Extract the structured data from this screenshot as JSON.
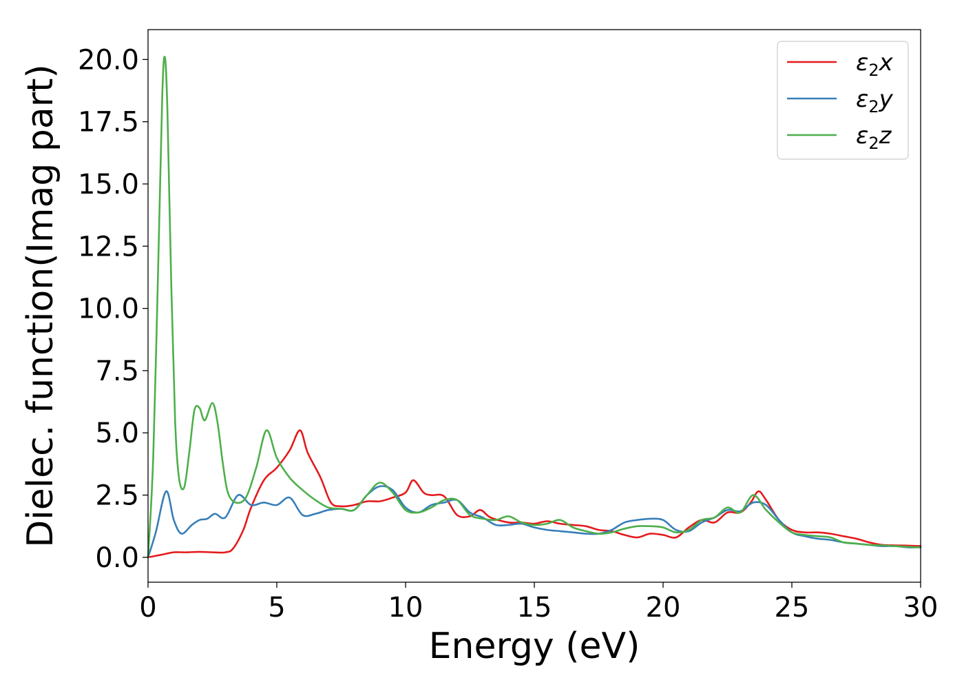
{
  "chart_data": {
    "type": "line",
    "title": "",
    "xlabel": "Energy (eV)",
    "ylabel": "Dielec. function(Imag part)",
    "xlim": [
      0,
      30
    ],
    "ylim": [
      -1.0,
      21.2
    ],
    "xticks": [
      0,
      5,
      10,
      15,
      20,
      25,
      30
    ],
    "xtick_labels": [
      "0",
      "5",
      "10",
      "15",
      "20",
      "25",
      "30"
    ],
    "yticks": [
      0.0,
      2.5,
      5.0,
      7.5,
      10.0,
      12.5,
      15.0,
      17.5,
      20.0
    ],
    "ytick_labels": [
      "0.0",
      "2.5",
      "5.0",
      "7.5",
      "10.0",
      "12.5",
      "15.0",
      "17.5",
      "20.0"
    ],
    "grid": false,
    "legend_position": "top-right",
    "series": [
      {
        "name": "ε₂x",
        "legend_main": "ε",
        "legend_sub": "2",
        "legend_var": "x",
        "color": "#e41a1c",
        "x": [
          0,
          0.5,
          1.0,
          1.5,
          2.0,
          2.5,
          3.0,
          3.3,
          3.7,
          4.0,
          4.5,
          5.0,
          5.5,
          5.9,
          6.2,
          6.7,
          7.1,
          7.5,
          8.0,
          8.5,
          9.0,
          9.5,
          10.0,
          10.3,
          10.7,
          11.0,
          11.5,
          12.0,
          12.5,
          12.9,
          13.3,
          14.0,
          14.5,
          15.0,
          15.5,
          16.0,
          16.5,
          17.0,
          17.5,
          18.0,
          18.5,
          19.0,
          19.5,
          20.0,
          20.5,
          21.0,
          21.5,
          22.0,
          22.5,
          23.0,
          23.4,
          23.7,
          24.0,
          24.5,
          25.0,
          25.5,
          26.0,
          26.5,
          27.0,
          27.5,
          28.0,
          28.5,
          29.0,
          29.5,
          30.0
        ],
        "y": [
          0.0,
          0.1,
          0.2,
          0.2,
          0.22,
          0.2,
          0.2,
          0.35,
          1.1,
          2.0,
          3.1,
          3.6,
          4.3,
          5.1,
          4.2,
          3.2,
          2.2,
          2.05,
          2.1,
          2.25,
          2.25,
          2.4,
          2.6,
          3.1,
          2.6,
          2.5,
          2.45,
          1.7,
          1.65,
          1.9,
          1.6,
          1.4,
          1.4,
          1.35,
          1.45,
          1.35,
          1.3,
          1.25,
          1.1,
          1.05,
          0.9,
          0.8,
          0.95,
          0.9,
          0.8,
          1.2,
          1.5,
          1.4,
          1.8,
          1.8,
          2.2,
          2.65,
          2.3,
          1.5,
          1.1,
          1.0,
          1.0,
          0.95,
          0.85,
          0.75,
          0.6,
          0.5,
          0.48,
          0.47,
          0.45
        ]
      },
      {
        "name": "ε₂y",
        "legend_main": "ε",
        "legend_sub": "2",
        "legend_var": "y",
        "color": "#377eb8",
        "x": [
          0,
          0.3,
          0.7,
          1.0,
          1.3,
          1.7,
          2.0,
          2.3,
          2.6,
          3.0,
          3.5,
          4.0,
          4.5,
          5.0,
          5.5,
          6.0,
          6.5,
          7.0,
          7.5,
          8.0,
          8.5,
          9.0,
          9.5,
          10.0,
          10.5,
          11.0,
          11.5,
          12.0,
          12.5,
          13.0,
          13.5,
          14.0,
          14.5,
          15.0,
          15.5,
          16.0,
          16.5,
          17.0,
          17.5,
          18.0,
          18.5,
          19.0,
          19.5,
          20.0,
          20.5,
          21.0,
          21.5,
          22.0,
          22.5,
          23.0,
          23.5,
          24.0,
          24.5,
          25.0,
          25.5,
          26.0,
          26.5,
          27.0,
          27.5,
          28.0,
          28.5,
          29.0,
          29.5,
          30.0
        ],
        "y": [
          0.0,
          1.0,
          2.65,
          1.5,
          0.95,
          1.3,
          1.5,
          1.55,
          1.75,
          1.6,
          2.5,
          2.1,
          2.2,
          2.1,
          2.4,
          1.7,
          1.75,
          1.9,
          1.95,
          1.9,
          2.5,
          2.85,
          2.7,
          2.0,
          1.8,
          2.1,
          2.2,
          2.3,
          1.8,
          1.6,
          1.3,
          1.3,
          1.35,
          1.2,
          1.1,
          1.05,
          1.0,
          0.95,
          0.95,
          1.1,
          1.4,
          1.5,
          1.55,
          1.5,
          1.1,
          1.05,
          1.4,
          1.6,
          1.9,
          1.85,
          2.2,
          2.1,
          1.5,
          1.0,
          0.85,
          0.75,
          0.7,
          0.6,
          0.55,
          0.5,
          0.45,
          0.45,
          0.4,
          0.4
        ]
      },
      {
        "name": "ε₂z",
        "legend_main": "ε",
        "legend_sub": "2",
        "legend_var": "z",
        "color": "#4daf4a",
        "x": [
          0,
          0.2,
          0.4,
          0.55,
          0.65,
          0.75,
          0.9,
          1.05,
          1.2,
          1.4,
          1.6,
          1.8,
          2.0,
          2.2,
          2.5,
          2.7,
          2.9,
          3.1,
          3.4,
          3.8,
          4.2,
          4.6,
          5.0,
          5.5,
          6.0,
          6.5,
          7.0,
          7.5,
          8.0,
          8.5,
          9.0,
          9.5,
          10.0,
          10.5,
          11.0,
          11.5,
          12.0,
          12.5,
          13.0,
          13.5,
          14.0,
          14.5,
          15.0,
          15.5,
          16.0,
          16.5,
          17.0,
          17.5,
          18.0,
          18.5,
          19.0,
          19.5,
          20.0,
          20.5,
          21.0,
          21.5,
          22.0,
          22.5,
          23.0,
          23.5,
          24.0,
          24.5,
          25.0,
          25.5,
          26.0,
          26.5,
          27.0,
          27.5,
          28.0,
          28.5,
          29.0,
          29.5,
          30.0
        ],
        "y": [
          0.0,
          4.0,
          12.0,
          18.5,
          20.1,
          18.0,
          11.0,
          5.5,
          3.2,
          2.8,
          4.2,
          5.9,
          6.0,
          5.5,
          6.2,
          5.4,
          3.8,
          2.6,
          2.2,
          2.4,
          3.6,
          5.1,
          4.0,
          3.2,
          2.7,
          2.3,
          2.0,
          1.95,
          1.9,
          2.5,
          3.0,
          2.6,
          1.9,
          1.8,
          2.0,
          2.3,
          2.3,
          1.7,
          1.55,
          1.5,
          1.65,
          1.4,
          1.3,
          1.35,
          1.5,
          1.2,
          1.05,
          0.95,
          1.0,
          1.15,
          1.25,
          1.25,
          1.2,
          1.0,
          1.1,
          1.5,
          1.6,
          2.0,
          1.8,
          2.5,
          1.9,
          1.4,
          1.0,
          0.9,
          0.85,
          0.8,
          0.6,
          0.55,
          0.5,
          0.48,
          0.45,
          0.42,
          0.4
        ]
      }
    ]
  }
}
